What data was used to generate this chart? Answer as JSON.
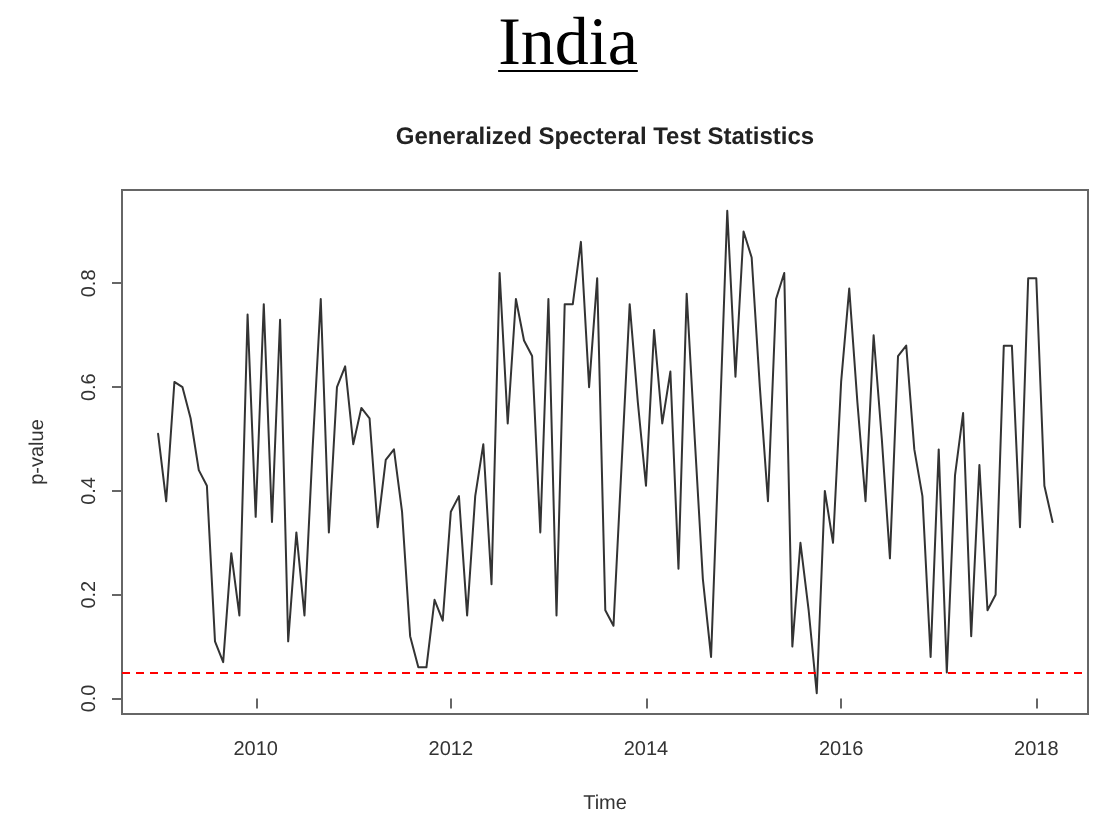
{
  "chart_data": {
    "type": "line",
    "title": "India",
    "subtitle": "Generalized Specteral Test Statistics",
    "xlabel": "Time",
    "ylabel": "p-value",
    "x": [
      2009,
      2009.083,
      2009.167,
      2009.25,
      2009.333,
      2009.417,
      2009.5,
      2009.583,
      2009.667,
      2009.75,
      2009.833,
      2009.917,
      2010,
      2010.083,
      2010.167,
      2010.25,
      2010.333,
      2010.417,
      2010.5,
      2010.583,
      2010.667,
      2010.75,
      2010.833,
      2010.917,
      2011,
      2011.083,
      2011.167,
      2011.25,
      2011.333,
      2011.417,
      2011.5,
      2011.583,
      2011.667,
      2011.75,
      2011.833,
      2011.917,
      2012,
      2012.083,
      2012.167,
      2012.25,
      2012.333,
      2012.417,
      2012.5,
      2012.583,
      2012.667,
      2012.75,
      2012.833,
      2012.917,
      2013,
      2013.083,
      2013.167,
      2013.25,
      2013.333,
      2013.417,
      2013.5,
      2013.583,
      2013.667,
      2013.75,
      2013.833,
      2013.917,
      2014,
      2014.083,
      2014.167,
      2014.25,
      2014.333,
      2014.417,
      2014.5,
      2014.583,
      2014.667,
      2014.75,
      2014.833,
      2014.917,
      2015,
      2015.083,
      2015.167,
      2015.25,
      2015.333,
      2015.417,
      2015.5,
      2015.583,
      2015.667,
      2015.75,
      2015.833,
      2015.917,
      2016,
      2016.083,
      2016.167,
      2016.25,
      2016.333,
      2016.417,
      2016.5,
      2016.583,
      2016.667,
      2016.75,
      2016.833,
      2016.917,
      2017,
      2017.083,
      2017.167,
      2017.25,
      2017.333,
      2017.417,
      2017.5,
      2017.583,
      2017.667,
      2017.75,
      2017.833,
      2017.917,
      2018,
      2018.083,
      2018.167
    ],
    "values": [
      0.51,
      0.38,
      0.61,
      0.6,
      0.54,
      0.44,
      0.41,
      0.11,
      0.07,
      0.28,
      0.16,
      0.74,
      0.35,
      0.76,
      0.34,
      0.73,
      0.11,
      0.32,
      0.16,
      0.48,
      0.77,
      0.32,
      0.6,
      0.64,
      0.49,
      0.56,
      0.54,
      0.33,
      0.46,
      0.48,
      0.36,
      0.12,
      0.06,
      0.06,
      0.19,
      0.15,
      0.36,
      0.39,
      0.16,
      0.39,
      0.49,
      0.22,
      0.82,
      0.53,
      0.77,
      0.69,
      0.66,
      0.32,
      0.77,
      0.16,
      0.76,
      0.76,
      0.88,
      0.6,
      0.81,
      0.17,
      0.14,
      0.45,
      0.76,
      0.57,
      0.41,
      0.71,
      0.53,
      0.63,
      0.25,
      0.78,
      0.5,
      0.23,
      0.08,
      0.5,
      0.94,
      0.62,
      0.9,
      0.85,
      0.6,
      0.38,
      0.77,
      0.82,
      0.1,
      0.3,
      0.17,
      0.01,
      0.4,
      0.3,
      0.61,
      0.79,
      0.57,
      0.38,
      0.7,
      0.5,
      0.27,
      0.66,
      0.68,
      0.48,
      0.39,
      0.08,
      0.48,
      0.05,
      0.43,
      0.55,
      0.12,
      0.45,
      0.17,
      0.2,
      0.68,
      0.68,
      0.33,
      0.81,
      0.81,
      0.41,
      0.34
    ],
    "color": "#333333",
    "xlim": [
      2008.63,
      2018.53
    ],
    "xticks": [
      2010,
      2012,
      2014,
      2016,
      2018
    ],
    "ylim": [
      -0.03,
      0.98
    ],
    "yticks": [
      {
        "value": 0,
        "label": "0.0"
      },
      0.2,
      0.4,
      0.6,
      0.8
    ],
    "ref_lines": [
      {
        "axis": "y",
        "value": 0.05,
        "color": "#ff0000",
        "line_style": "dashed"
      }
    ],
    "marker": "none"
  }
}
